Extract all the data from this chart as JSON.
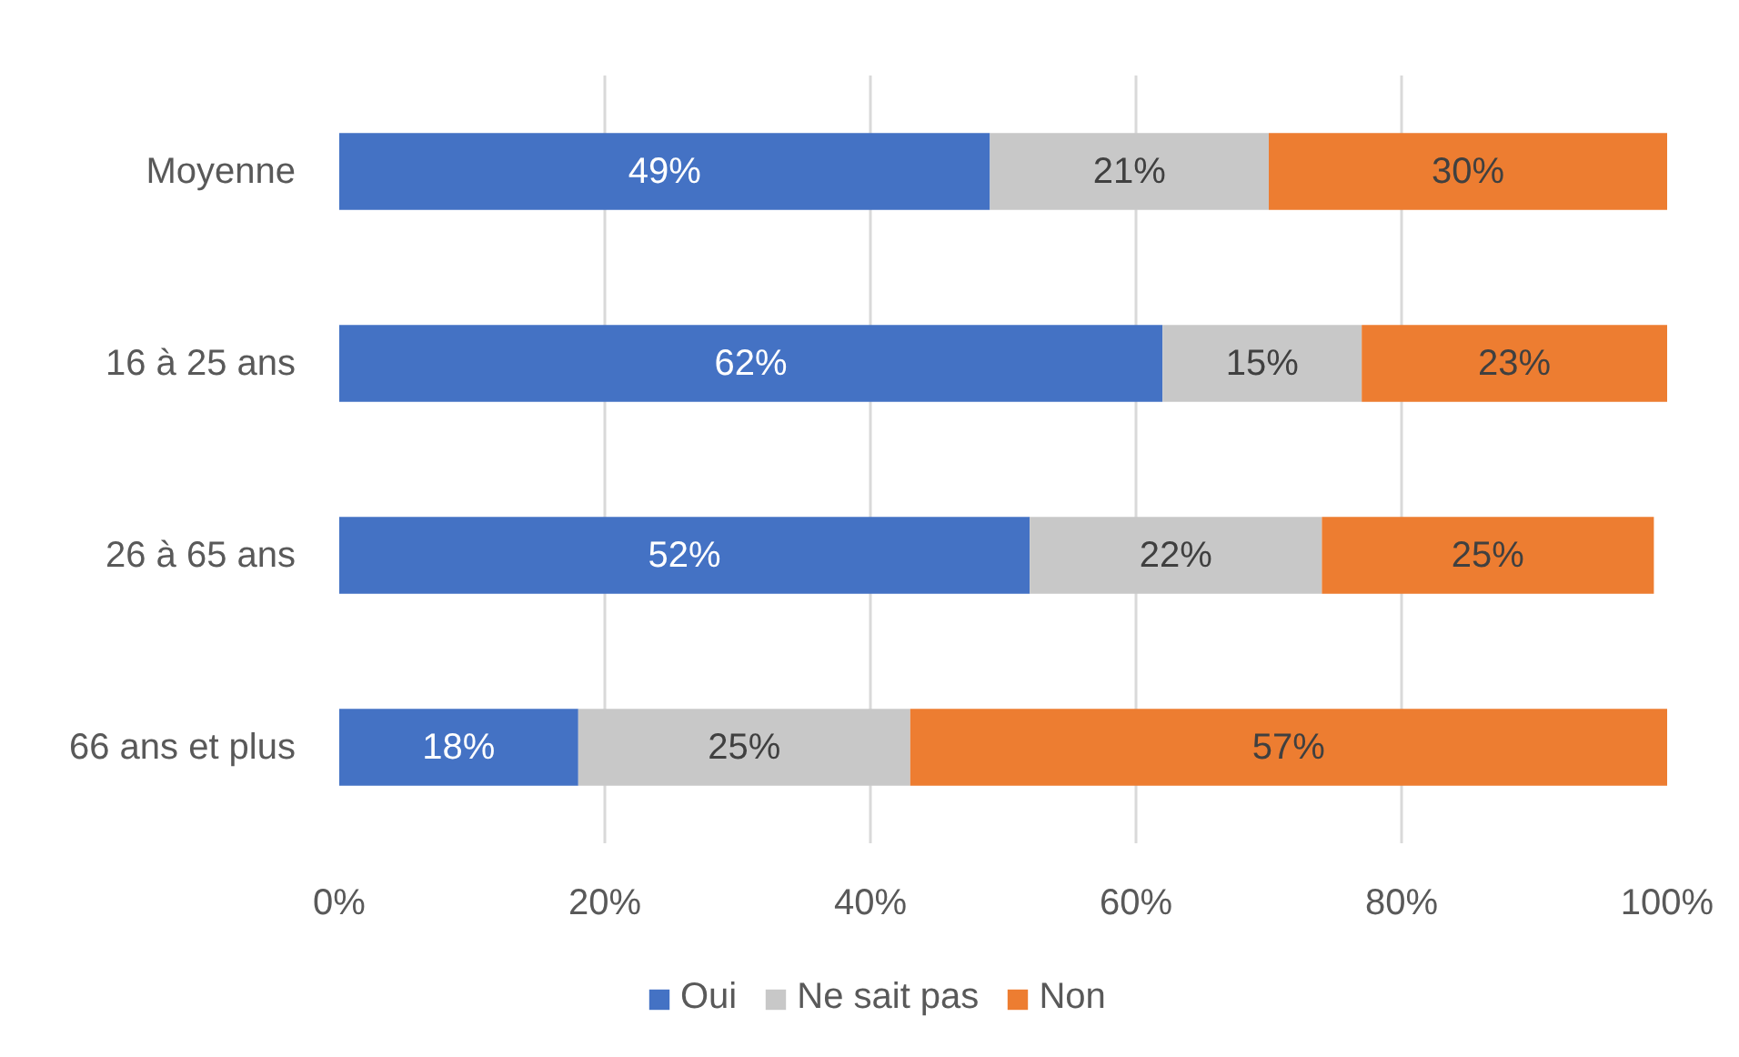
{
  "chart_data": {
    "type": "bar",
    "orientation": "horizontal",
    "stacked": true,
    "categories": [
      "Moyenne",
      "16 à 25 ans",
      "26 à 65 ans",
      "66 ans et plus"
    ],
    "series": [
      {
        "name": "Oui",
        "color": "#4472c4",
        "values": [
          49,
          62,
          52,
          18
        ],
        "value_labels": [
          "49%",
          "62%",
          "52%",
          "18%"
        ]
      },
      {
        "name": "Ne sait pas",
        "color": "#c8c8c8",
        "values": [
          21,
          15,
          22,
          25
        ],
        "value_labels": [
          "21%",
          "15%",
          "22%",
          "25%"
        ]
      },
      {
        "name": "Non",
        "color": "#ed7d31",
        "values": [
          30,
          23,
          25,
          57
        ],
        "value_labels": [
          "30%",
          "23%",
          "25%",
          "57%"
        ]
      }
    ],
    "xlim": [
      0,
      100
    ],
    "xticks": [
      {
        "value": 0,
        "label": "0%"
      },
      {
        "value": 20,
        "label": "20%"
      },
      {
        "value": 40,
        "label": "40%"
      },
      {
        "value": 60,
        "label": "60%"
      },
      {
        "value": 80,
        "label": "80%"
      },
      {
        "value": 100,
        "label": "100%"
      }
    ],
    "grid": "x",
    "legend": "bottom"
  }
}
